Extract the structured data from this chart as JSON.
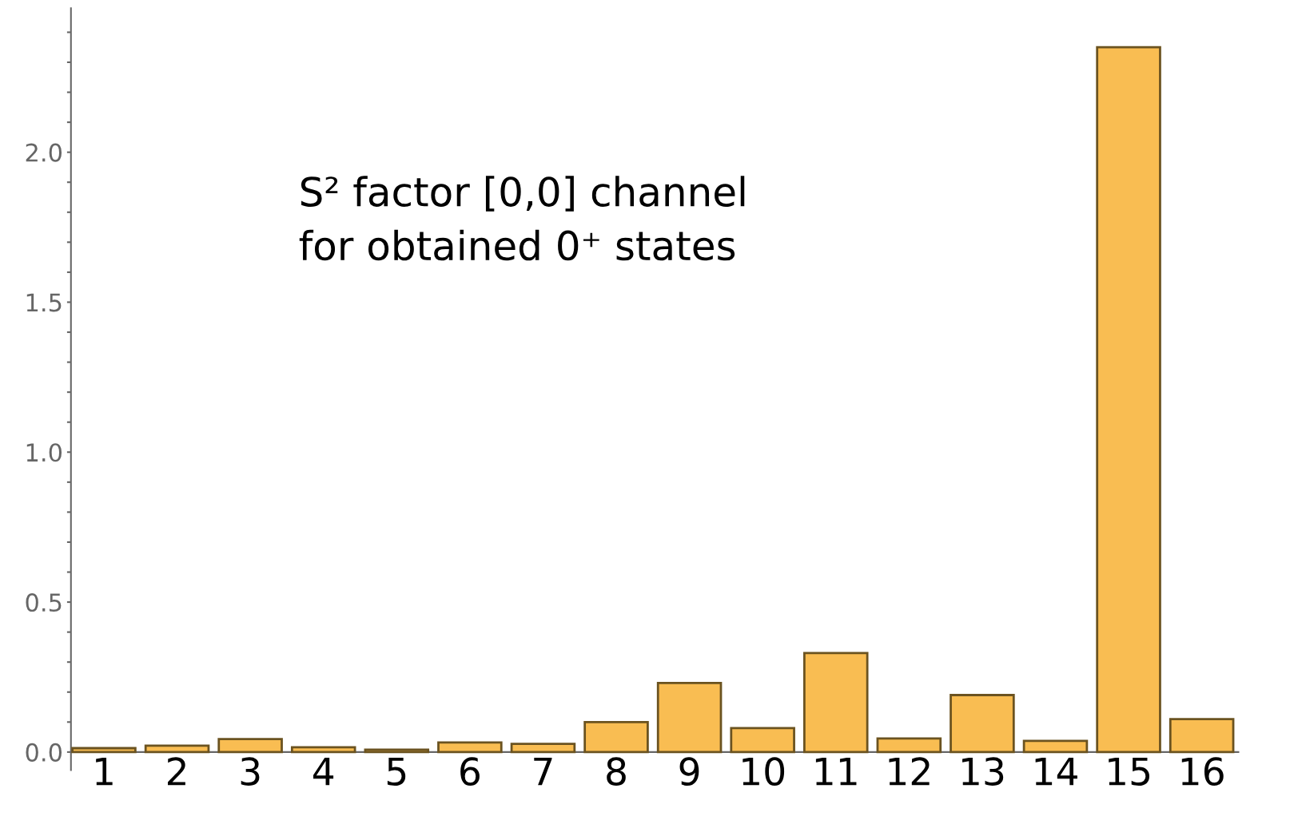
{
  "chart_data": {
    "type": "bar",
    "categories": [
      "1",
      "2",
      "3",
      "4",
      "5",
      "6",
      "7",
      "8",
      "9",
      "10",
      "11",
      "12",
      "13",
      "14",
      "15",
      "16"
    ],
    "values": [
      0.013,
      0.021,
      0.043,
      0.016,
      0.008,
      0.032,
      0.027,
      0.1,
      0.23,
      0.08,
      0.33,
      0.045,
      0.19,
      0.037,
      2.35,
      0.11
    ],
    "color": "#f9bd52",
    "ylim": [
      -0.06,
      2.48
    ],
    "yticks": [
      {
        "value": 0,
        "label": "0.0"
      },
      {
        "value": 0.1,
        "label": null
      },
      {
        "value": 0.2,
        "label": null
      },
      {
        "value": 0.3,
        "label": null
      },
      {
        "value": 0.4,
        "label": null
      },
      0.5,
      {
        "value": 0.6,
        "label": null
      },
      {
        "value": 0.7,
        "label": null
      },
      {
        "value": 0.8,
        "label": null
      },
      {
        "value": 0.9,
        "label": null
      },
      {
        "value": 1,
        "label": "1.0"
      },
      {
        "value": 1.1,
        "label": null
      },
      {
        "value": 1.2,
        "label": null
      },
      {
        "value": 1.3,
        "label": null
      },
      {
        "value": 1.4,
        "label": null
      },
      1.5,
      {
        "value": 1.6,
        "label": null
      },
      {
        "value": 1.7,
        "label": null
      },
      {
        "value": 1.8,
        "label": null
      },
      {
        "value": 1.9,
        "label": null
      },
      {
        "value": 2,
        "label": "2.0"
      },
      {
        "value": 2.1,
        "label": null
      },
      {
        "value": 2.2,
        "label": null
      },
      {
        "value": 2.3,
        "label": null
      },
      {
        "value": 2.4,
        "label": null
      }
    ],
    "annotations": [
      "S² factor [0,0] channel\nfor obtained 0⁺ states"
    ],
    "grid": false,
    "legend": false
  }
}
